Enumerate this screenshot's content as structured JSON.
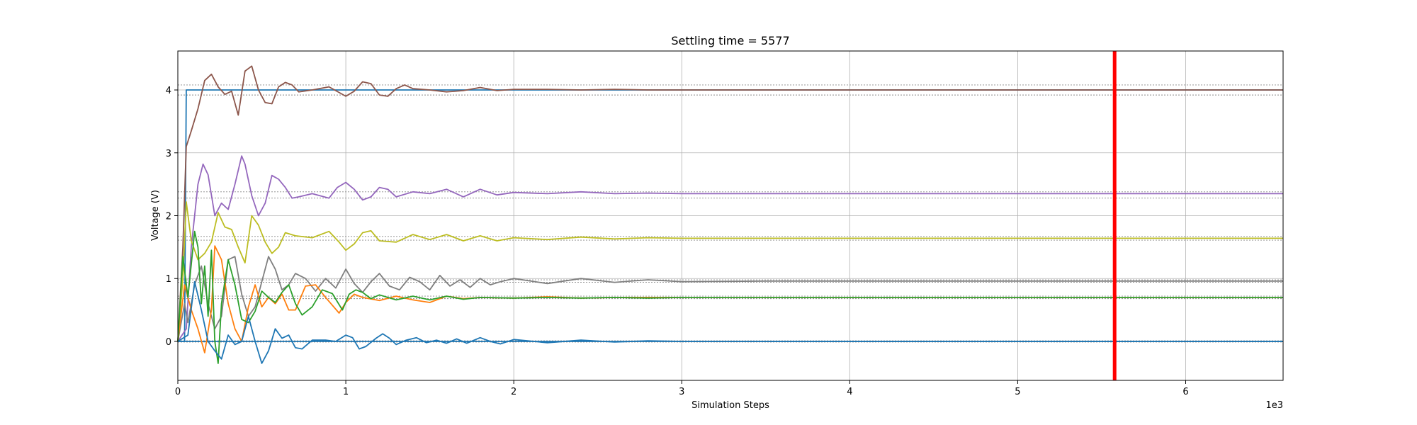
{
  "chart_data": {
    "type": "line",
    "title": "Settling time = 5577",
    "xlabel": "Simulation Steps",
    "ylabel": "Voltage (V)",
    "x_scale_label": "1e3",
    "xlim": [
      0,
      6.58
    ],
    "ylim": [
      -0.62,
      4.62
    ],
    "x_ticks": [
      0,
      1,
      2,
      3,
      4,
      5,
      6
    ],
    "x_tick_labels": [
      "0",
      "1",
      "2",
      "3",
      "4",
      "5",
      "6"
    ],
    "y_ticks": [
      0,
      1,
      2,
      3,
      4
    ],
    "y_tick_labels": [
      "0",
      "1",
      "2",
      "3",
      "4"
    ],
    "grid": true,
    "legend": "none",
    "settling_marker": {
      "x": 5.577,
      "color": "#ff0000"
    },
    "tolerance_bands": [
      {
        "center": 4.0,
        "lower": 3.92,
        "upper": 4.08
      },
      {
        "center": 2.33,
        "lower": 2.28,
        "upper": 2.38
      },
      {
        "center": 1.64,
        "lower": 1.61,
        "upper": 1.67
      },
      {
        "center": 0.96,
        "lower": 0.94,
        "upper": 0.98
      },
      {
        "center": 0.7,
        "lower": 0.68,
        "upper": 0.72
      },
      {
        "center": 0.0,
        "lower": -0.01,
        "upper": 0.01
      }
    ],
    "series": [
      {
        "color": "#1f77b4",
        "x": [
          0,
          0.04,
          0.05,
          6.58
        ],
        "y": [
          0,
          0,
          4.0,
          4.0
        ]
      },
      {
        "color": "#1f77b4",
        "x": [
          0,
          6.58
        ],
        "y": [
          0,
          0
        ]
      },
      {
        "color": "#8c564b",
        "x": [
          0,
          0.03,
          0.05,
          0.08,
          0.12,
          0.16,
          0.2,
          0.24,
          0.28,
          0.32,
          0.36,
          0.4,
          0.44,
          0.48,
          0.52,
          0.56,
          0.6,
          0.64,
          0.68,
          0.72,
          0.8,
          0.9,
          1.0,
          1.05,
          1.1,
          1.15,
          1.2,
          1.25,
          1.3,
          1.35,
          1.4,
          1.5,
          1.6,
          1.7,
          1.8,
          1.9,
          2.0,
          2.2,
          2.4,
          2.6,
          2.8,
          3.0,
          3.5,
          4.0,
          4.5,
          5.0,
          5.5,
          6.0,
          6.58
        ],
        "y": [
          0,
          1.5,
          3.1,
          3.35,
          3.7,
          4.15,
          4.25,
          4.05,
          3.93,
          3.98,
          3.6,
          4.3,
          4.38,
          4.0,
          3.8,
          3.78,
          4.05,
          4.12,
          4.08,
          3.97,
          4.0,
          4.05,
          3.9,
          3.98,
          4.13,
          4.1,
          3.92,
          3.9,
          4.02,
          4.08,
          4.02,
          4.0,
          3.97,
          3.99,
          4.04,
          3.99,
          4.01,
          4.01,
          4.0,
          4.01,
          4.0,
          4.0,
          4.0,
          4.0,
          4.0,
          4.0,
          4.0,
          4.0,
          4.0
        ]
      },
      {
        "color": "#9467bd",
        "x": [
          0,
          0.05,
          0.08,
          0.12,
          0.15,
          0.18,
          0.22,
          0.26,
          0.3,
          0.34,
          0.38,
          0.4,
          0.44,
          0.48,
          0.52,
          0.56,
          0.6,
          0.64,
          0.68,
          0.72,
          0.8,
          0.9,
          0.95,
          1.0,
          1.05,
          1.1,
          1.15,
          1.2,
          1.25,
          1.3,
          1.4,
          1.5,
          1.6,
          1.7,
          1.8,
          1.9,
          2.0,
          2.2,
          2.4,
          2.6,
          2.8,
          3.0,
          3.5,
          4.0,
          5.0,
          5.5,
          6.0,
          6.58
        ],
        "y": [
          0,
          0.2,
          1.5,
          2.5,
          2.82,
          2.65,
          2.0,
          2.2,
          2.1,
          2.5,
          2.95,
          2.82,
          2.32,
          2.0,
          2.2,
          2.64,
          2.58,
          2.45,
          2.28,
          2.3,
          2.35,
          2.28,
          2.45,
          2.53,
          2.42,
          2.25,
          2.3,
          2.45,
          2.42,
          2.3,
          2.38,
          2.35,
          2.42,
          2.3,
          2.42,
          2.33,
          2.37,
          2.35,
          2.38,
          2.35,
          2.36,
          2.35,
          2.35,
          2.35,
          2.35,
          2.35,
          2.35,
          2.35
        ]
      },
      {
        "color": "#bcbd22",
        "x": [
          0,
          0.03,
          0.05,
          0.08,
          0.12,
          0.16,
          0.2,
          0.24,
          0.28,
          0.32,
          0.36,
          0.4,
          0.44,
          0.48,
          0.52,
          0.56,
          0.6,
          0.64,
          0.7,
          0.8,
          0.9,
          0.96,
          1.0,
          1.05,
          1.1,
          1.15,
          1.2,
          1.3,
          1.4,
          1.5,
          1.6,
          1.7,
          1.8,
          1.9,
          2.0,
          2.2,
          2.4,
          2.6,
          2.8,
          3.0,
          3.5,
          4.0,
          5.0,
          6.0,
          6.58
        ],
        "y": [
          0,
          1.0,
          2.22,
          1.6,
          1.3,
          1.4,
          1.58,
          2.05,
          1.82,
          1.78,
          1.5,
          1.25,
          2.0,
          1.85,
          1.58,
          1.4,
          1.5,
          1.73,
          1.68,
          1.65,
          1.75,
          1.58,
          1.45,
          1.55,
          1.73,
          1.76,
          1.6,
          1.58,
          1.7,
          1.62,
          1.7,
          1.6,
          1.68,
          1.6,
          1.65,
          1.62,
          1.66,
          1.63,
          1.65,
          1.64,
          1.64,
          1.64,
          1.64,
          1.64,
          1.64
        ]
      },
      {
        "color": "#7f7f7f",
        "x": [
          0,
          0.04,
          0.06,
          0.1,
          0.14,
          0.18,
          0.22,
          0.26,
          0.3,
          0.34,
          0.38,
          0.42,
          0.46,
          0.5,
          0.54,
          0.58,
          0.62,
          0.66,
          0.7,
          0.76,
          0.82,
          0.88,
          0.94,
          1.0,
          1.05,
          1.1,
          1.15,
          1.2,
          1.26,
          1.32,
          1.38,
          1.44,
          1.5,
          1.56,
          1.62,
          1.68,
          1.74,
          1.8,
          1.86,
          1.92,
          2.0,
          2.2,
          2.4,
          2.6,
          2.8,
          3.0,
          3.5,
          4.0,
          5.0,
          6.0,
          6.58
        ],
        "y": [
          0,
          0.6,
          0.3,
          0.9,
          1.2,
          0.6,
          0.2,
          0.4,
          1.3,
          1.35,
          0.75,
          0.4,
          0.55,
          0.95,
          1.35,
          1.15,
          0.82,
          0.9,
          1.08,
          1.0,
          0.8,
          1.0,
          0.85,
          1.15,
          0.92,
          0.78,
          0.95,
          1.08,
          0.88,
          0.82,
          1.02,
          0.95,
          0.82,
          1.05,
          0.88,
          0.98,
          0.86,
          1.0,
          0.9,
          0.95,
          1.0,
          0.92,
          1.0,
          0.94,
          0.98,
          0.95,
          0.96,
          0.96,
          0.96,
          0.96,
          0.96
        ]
      },
      {
        "color": "#ff7f0e",
        "x": [
          0,
          0.04,
          0.08,
          0.12,
          0.16,
          0.2,
          0.22,
          0.26,
          0.3,
          0.34,
          0.38,
          0.42,
          0.46,
          0.5,
          0.54,
          0.58,
          0.62,
          0.66,
          0.7,
          0.76,
          0.82,
          0.88,
          0.96,
          1.0,
          1.05,
          1.1,
          1.2,
          1.3,
          1.4,
          1.5,
          1.6,
          1.7,
          1.8,
          2.0,
          2.2,
          2.4,
          2.6,
          2.8,
          3.0,
          3.5,
          4.0,
          5.0,
          6.0,
          6.58
        ],
        "y": [
          0,
          0.9,
          0.5,
          0.2,
          -0.18,
          0.5,
          1.52,
          1.3,
          0.6,
          0.2,
          0.0,
          0.55,
          0.9,
          0.55,
          0.7,
          0.6,
          0.75,
          0.5,
          0.5,
          0.88,
          0.9,
          0.7,
          0.45,
          0.62,
          0.75,
          0.7,
          0.65,
          0.72,
          0.66,
          0.62,
          0.72,
          0.68,
          0.7,
          0.69,
          0.71,
          0.69,
          0.7,
          0.7,
          0.7,
          0.7,
          0.7,
          0.7,
          0.7,
          0.7
        ]
      },
      {
        "color": "#2ca02c",
        "x": [
          0,
          0.03,
          0.06,
          0.1,
          0.12,
          0.14,
          0.16,
          0.18,
          0.2,
          0.22,
          0.24,
          0.26,
          0.3,
          0.34,
          0.38,
          0.42,
          0.46,
          0.5,
          0.54,
          0.58,
          0.62,
          0.66,
          0.7,
          0.74,
          0.8,
          0.86,
          0.92,
          0.98,
          1.02,
          1.06,
          1.1,
          1.15,
          1.2,
          1.3,
          1.4,
          1.5,
          1.6,
          1.7,
          1.8,
          2.0,
          2.2,
          2.4,
          2.6,
          2.8,
          3.0,
          3.5,
          4.0,
          5.0,
          6.0,
          6.58
        ],
        "y": [
          0,
          1.35,
          0.7,
          1.75,
          1.5,
          0.6,
          1.2,
          0.4,
          1.45,
          0.0,
          -0.35,
          0.6,
          1.3,
          0.9,
          0.35,
          0.3,
          0.48,
          0.8,
          0.7,
          0.62,
          0.78,
          0.9,
          0.6,
          0.42,
          0.55,
          0.82,
          0.76,
          0.5,
          0.75,
          0.82,
          0.78,
          0.68,
          0.74,
          0.66,
          0.72,
          0.66,
          0.72,
          0.67,
          0.7,
          0.69,
          0.7,
          0.69,
          0.7,
          0.69,
          0.7,
          0.7,
          0.7,
          0.7,
          0.7,
          0.7
        ]
      },
      {
        "color": "#1f77b4",
        "x": [
          0,
          0.06,
          0.1,
          0.14,
          0.18,
          0.22,
          0.26,
          0.3,
          0.34,
          0.38,
          0.42,
          0.46,
          0.5,
          0.54,
          0.58,
          0.62,
          0.66,
          0.7,
          0.74,
          0.8,
          0.88,
          0.94,
          1.0,
          1.04,
          1.08,
          1.12,
          1.18,
          1.22,
          1.26,
          1.3,
          1.36,
          1.42,
          1.48,
          1.54,
          1.6,
          1.66,
          1.72,
          1.8,
          1.86,
          1.92,
          2.0,
          2.2,
          2.4,
          2.6,
          2.8,
          3.0,
          3.5,
          4.0,
          5.0,
          6.0,
          6.58
        ],
        "y": [
          0,
          0.1,
          0.95,
          0.5,
          0.0,
          -0.15,
          -0.28,
          0.1,
          -0.05,
          0.0,
          0.4,
          0.0,
          -0.35,
          -0.15,
          0.2,
          0.05,
          0.1,
          -0.1,
          -0.12,
          0.02,
          0.02,
          0.0,
          0.1,
          0.06,
          -0.12,
          -0.08,
          0.05,
          0.12,
          0.05,
          -0.05,
          0.02,
          0.06,
          -0.02,
          0.02,
          -0.03,
          0.04,
          -0.03,
          0.06,
          0.0,
          -0.04,
          0.03,
          -0.02,
          0.02,
          -0.01,
          0.01,
          0.0,
          0.0,
          0.0,
          0.0,
          0.0,
          0.0
        ]
      }
    ]
  }
}
